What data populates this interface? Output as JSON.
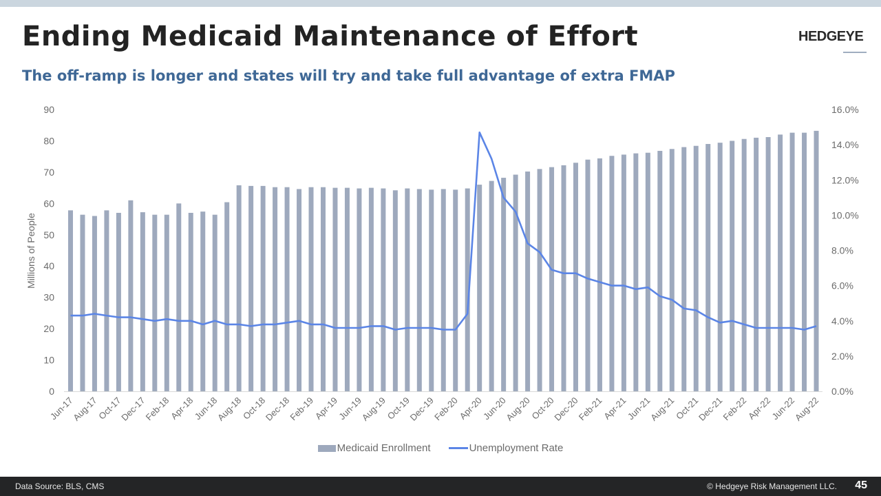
{
  "slide": {
    "title": "Ending Medicaid Maintenance of Effort",
    "subtitle": "The off-ramp is longer and states will try and take full advantage of extra FMAP",
    "logo": "HEDGEYE",
    "colors": {
      "bar": "#9ea9bd",
      "line": "#5b85e6",
      "subtitle": "#3f6896",
      "footer_bg": "#242526",
      "top_bar": "#cbd6df"
    }
  },
  "footer": {
    "source": "Data Source: BLS, CMS",
    "copyright": "© Hedgeye Risk Management LLC.",
    "page_number": "45"
  },
  "legend": {
    "bar_label": "Medicaid Enrollment",
    "line_label": "Unemployment Rate"
  },
  "chart_data": {
    "type": "bar",
    "title": "",
    "xlabel": "",
    "ylabel": "Millions of People",
    "y2label": "",
    "ylim": [
      0,
      90
    ],
    "y2lim": [
      0,
      16
    ],
    "yticks": [
      "0",
      "10",
      "20",
      "30",
      "40",
      "50",
      "60",
      "70",
      "80",
      "90"
    ],
    "y2ticks": [
      "0.0%",
      "2.0%",
      "4.0%",
      "6.0%",
      "8.0%",
      "10.0%",
      "12.0%",
      "14.0%",
      "16.0%"
    ],
    "grid": false,
    "legend_position": "bottom",
    "categories": [
      "Jun-17",
      "Jul-17",
      "Aug-17",
      "Sep-17",
      "Oct-17",
      "Nov-17",
      "Dec-17",
      "Jan-18",
      "Feb-18",
      "Mar-18",
      "Apr-18",
      "May-18",
      "Jun-18",
      "Jul-18",
      "Aug-18",
      "Sep-18",
      "Oct-18",
      "Nov-18",
      "Dec-18",
      "Jan-19",
      "Feb-19",
      "Mar-19",
      "Apr-19",
      "May-19",
      "Jun-19",
      "Jul-19",
      "Aug-19",
      "Sep-19",
      "Oct-19",
      "Nov-19",
      "Dec-19",
      "Jan-20",
      "Feb-20",
      "Mar-20",
      "Apr-20",
      "May-20",
      "Jun-20",
      "Jul-20",
      "Aug-20",
      "Sep-20",
      "Oct-20",
      "Nov-20",
      "Dec-20",
      "Jan-21",
      "Feb-21",
      "Mar-21",
      "Apr-21",
      "May-21",
      "Jun-21",
      "Jul-21",
      "Aug-21",
      "Sep-21",
      "Oct-21",
      "Nov-21",
      "Dec-21",
      "Jan-22",
      "Feb-22",
      "Mar-22",
      "Apr-22",
      "May-22",
      "Jun-22",
      "Jul-22",
      "Aug-22"
    ],
    "tick_labels": [
      "Jun-17",
      "Aug-17",
      "Oct-17",
      "Dec-17",
      "Feb-18",
      "Apr-18",
      "Jun-18",
      "Aug-18",
      "Oct-18",
      "Dec-18",
      "Feb-19",
      "Apr-19",
      "Jun-19",
      "Aug-19",
      "Oct-19",
      "Dec-19",
      "Feb-20",
      "Apr-20",
      "Jun-20",
      "Aug-20",
      "Oct-20",
      "Dec-20",
      "Feb-21",
      "Apr-21",
      "Jun-21",
      "Aug-21",
      "Oct-21",
      "Dec-21",
      "Feb-22",
      "Apr-22",
      "Jun-22",
      "Aug-22"
    ],
    "series": [
      {
        "name": "Medicaid Enrollment",
        "type": "bar",
        "axis": "left",
        "values": [
          57.8,
          56.4,
          56.0,
          57.8,
          57.0,
          61.0,
          57.2,
          56.4,
          56.4,
          60.0,
          57.0,
          57.4,
          56.4,
          60.4,
          65.8,
          65.6,
          65.6,
          65.2,
          65.2,
          64.6,
          65.2,
          65.2,
          65.0,
          65.0,
          64.8,
          65.0,
          64.8,
          64.2,
          64.8,
          64.6,
          64.4,
          64.6,
          64.4,
          64.8,
          66.0,
          67.2,
          68.2,
          69.2,
          70.2,
          71.0,
          71.6,
          72.2,
          73.0,
          74.0,
          74.4,
          75.2,
          75.6,
          76.0,
          76.2,
          76.8,
          77.4,
          78.0,
          78.4,
          79.0,
          79.4,
          80.0,
          80.6,
          81.0,
          81.2,
          82.0,
          82.6,
          82.6,
          83.2
        ]
      },
      {
        "name": "Unemployment Rate",
        "type": "line",
        "axis": "right",
        "unit": "%",
        "values": [
          4.3,
          4.3,
          4.4,
          4.3,
          4.2,
          4.2,
          4.1,
          4.0,
          4.1,
          4.0,
          4.0,
          3.8,
          4.0,
          3.8,
          3.8,
          3.7,
          3.8,
          3.8,
          3.9,
          4.0,
          3.8,
          3.8,
          3.6,
          3.6,
          3.6,
          3.7,
          3.7,
          3.5,
          3.6,
          3.6,
          3.6,
          3.5,
          3.5,
          4.4,
          14.7,
          13.2,
          11.0,
          10.2,
          8.4,
          7.9,
          6.9,
          6.7,
          6.7,
          6.4,
          6.2,
          6.0,
          6.0,
          5.8,
          5.9,
          5.4,
          5.2,
          4.7,
          4.6,
          4.2,
          3.9,
          4.0,
          3.8,
          3.6,
          3.6,
          3.6,
          3.6,
          3.5,
          3.7
        ]
      }
    ]
  }
}
